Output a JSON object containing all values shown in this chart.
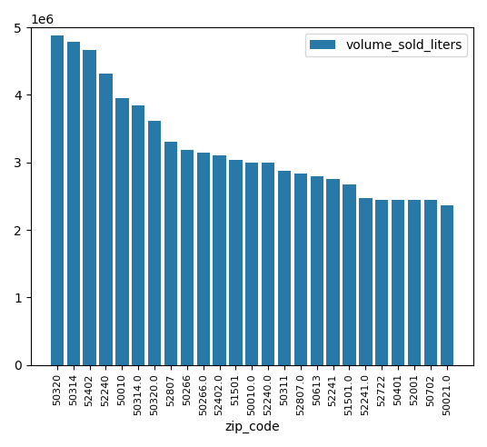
{
  "categories": [
    "50320",
    "50314",
    "52402",
    "52240",
    "50010",
    "50314.0",
    "50320.0",
    "52807",
    "50266",
    "50266.0",
    "52402.0",
    "51501",
    "50010.0",
    "52240.0",
    "50311",
    "52807.0",
    "50613",
    "52241",
    "51501.0",
    "52241.0",
    "52722",
    "50401",
    "52001",
    "50702",
    "50021.0"
  ],
  "values": [
    4880000,
    4790000,
    4670000,
    4310000,
    3950000,
    3840000,
    3620000,
    3300000,
    3180000,
    3150000,
    3110000,
    3040000,
    3000000,
    3000000,
    2880000,
    2830000,
    2790000,
    2750000,
    2680000,
    2470000,
    2440000,
    2440000,
    2440000,
    2440000,
    2360000
  ],
  "bar_color": "#2878a8",
  "xlabel": "zip_code",
  "legend_label": "volume_sold_liters",
  "ylim": [
    0,
    5000000
  ],
  "ytick_step": 1000000
}
